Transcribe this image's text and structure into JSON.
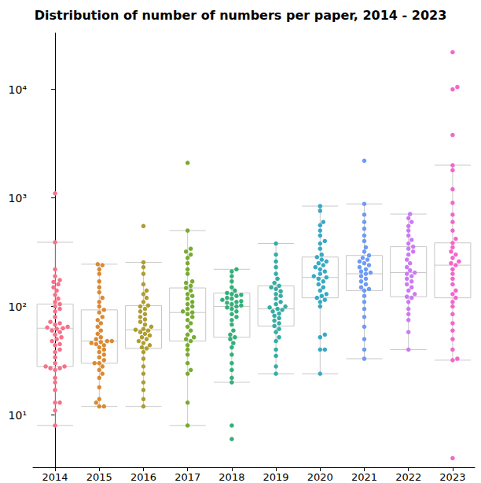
{
  "chart_data": {
    "type": "box",
    "title": "Distribution of number of numbers per paper, 2014 - 2023",
    "categories": [
      "2014",
      "2015",
      "2016",
      "2017",
      "2018",
      "2019",
      "2020",
      "2021",
      "2022",
      "2023"
    ],
    "colors": [
      "#f77189",
      "#dc8932",
      "#ae9d31",
      "#77ab31",
      "#33b07a",
      "#36ada4",
      "#38a9c5",
      "#6e9bf4",
      "#cc7af4",
      "#f565cc"
    ],
    "boxes": [
      [
        8,
        28,
        63,
        105,
        390
      ],
      [
        12,
        30,
        48,
        93,
        245
      ],
      [
        12,
        41,
        61,
        102,
        255
      ],
      [
        8,
        48,
        88,
        148,
        500
      ],
      [
        20,
        52,
        100,
        133,
        220
      ],
      [
        24,
        66,
        95,
        155,
        380
      ],
      [
        24,
        120,
        185,
        285,
        840
      ],
      [
        33,
        140,
        200,
        295,
        880
      ],
      [
        40,
        123,
        205,
        355,
        710
      ],
      [
        32,
        120,
        240,
        385,
        2000
      ]
    ],
    "points": [
      [
        8,
        11,
        13,
        13,
        17,
        20,
        22,
        26,
        27,
        27,
        28,
        28,
        30,
        34,
        38,
        40,
        44,
        45,
        48,
        50,
        52,
        55,
        58,
        60,
        62,
        63,
        64,
        65,
        68,
        70,
        72,
        80,
        90,
        95,
        100,
        105,
        110,
        118,
        128,
        140,
        150,
        160,
        168,
        175,
        190,
        220,
        390,
        1100
      ],
      [
        12,
        12,
        13,
        14,
        18,
        22,
        24,
        26,
        28,
        30,
        30,
        32,
        34,
        36,
        38,
        40,
        42,
        44,
        45,
        46,
        47,
        48,
        48,
        50,
        52,
        56,
        60,
        65,
        70,
        75,
        80,
        88,
        93,
        100,
        110,
        120,
        135,
        150,
        170,
        200,
        220,
        240,
        245
      ],
      [
        12,
        14,
        17,
        20,
        24,
        28,
        33,
        38,
        41,
        42,
        44,
        46,
        48,
        50,
        52,
        54,
        56,
        58,
        60,
        61,
        62,
        65,
        68,
        72,
        76,
        80,
        85,
        90,
        95,
        100,
        102,
        110,
        120,
        130,
        140,
        160,
        200,
        230,
        255,
        550
      ],
      [
        8,
        13,
        24,
        26,
        30,
        36,
        40,
        44,
        48,
        50,
        52,
        55,
        60,
        65,
        70,
        75,
        80,
        85,
        88,
        90,
        95,
        100,
        105,
        110,
        118,
        125,
        130,
        140,
        148,
        155,
        165,
        170,
        200,
        220,
        250,
        280,
        300,
        320,
        340,
        500,
        2100
      ],
      [
        6,
        8,
        20,
        22,
        26,
        30,
        36,
        42,
        46,
        50,
        52,
        55,
        60,
        68,
        75,
        80,
        85,
        90,
        95,
        98,
        100,
        102,
        105,
        108,
        110,
        112,
        115,
        118,
        120,
        125,
        128,
        130,
        133,
        140,
        150,
        170,
        190,
        210,
        220
      ],
      [
        24,
        28,
        35,
        40,
        48,
        52,
        58,
        62,
        66,
        70,
        74,
        78,
        82,
        86,
        90,
        93,
        95,
        98,
        100,
        105,
        110,
        118,
        125,
        130,
        138,
        145,
        150,
        155,
        165,
        180,
        200,
        230,
        260,
        300,
        380
      ],
      [
        24,
        40,
        40,
        52,
        55,
        100,
        110,
        115,
        120,
        125,
        130,
        140,
        150,
        160,
        170,
        180,
        185,
        190,
        200,
        210,
        220,
        230,
        240,
        250,
        260,
        270,
        285,
        300,
        340,
        380,
        400,
        450,
        500,
        560,
        600,
        760,
        840
      ],
      [
        33,
        40,
        50,
        65,
        80,
        95,
        110,
        125,
        140,
        145,
        150,
        160,
        170,
        180,
        190,
        200,
        205,
        210,
        220,
        230,
        240,
        250,
        260,
        270,
        280,
        295,
        320,
        350,
        400,
        450,
        520,
        600,
        700,
        880,
        2200
      ],
      [
        40,
        58,
        75,
        85,
        95,
        110,
        120,
        123,
        130,
        140,
        150,
        160,
        170,
        180,
        190,
        200,
        205,
        215,
        230,
        250,
        270,
        300,
        320,
        340,
        355,
        380,
        410,
        450,
        500,
        550,
        600,
        650,
        710
      ],
      [
        4,
        32,
        33,
        40,
        50,
        60,
        70,
        85,
        100,
        110,
        120,
        130,
        140,
        160,
        180,
        200,
        220,
        240,
        250,
        260,
        280,
        300,
        320,
        350,
        385,
        420,
        500,
        600,
        700,
        900,
        1200,
        1800,
        2000,
        3800,
        10000,
        10500,
        22000
      ]
    ],
    "log": "y",
    "grid": false,
    "ylim": [
      3.3,
      33000
    ],
    "yticks": [
      {
        "value": 10,
        "label": "10¹"
      },
      {
        "value": 100,
        "label": "10²"
      },
      {
        "value": 1000,
        "label": "10³"
      },
      {
        "value": 10000,
        "label": "10⁴"
      }
    ]
  }
}
